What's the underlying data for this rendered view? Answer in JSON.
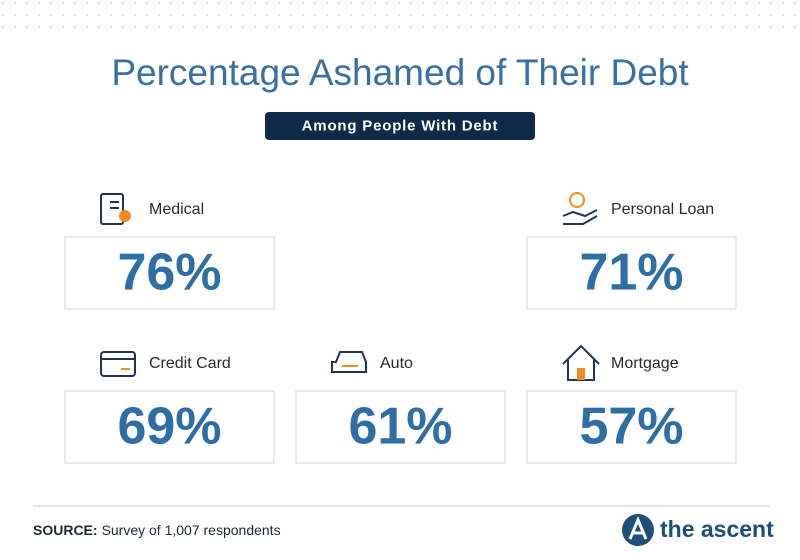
{
  "chart_data": {
    "type": "stat-cards",
    "title": "Percentage Ashamed of Their Debt",
    "subtitle": "Among People With Debt",
    "categories": [
      "Medical",
      "Personal Loan",
      "Credit Card",
      "Auto",
      "Mortgage"
    ],
    "values": [
      76,
      71,
      69,
      61,
      57
    ],
    "value_labels": [
      "76%",
      "71%",
      "69%",
      "61%",
      "57%"
    ],
    "color": "#2f6ea5",
    "source_label": "SOURCE:",
    "source": "Survey of 1,007 respondents",
    "brand": "the ascent"
  }
}
